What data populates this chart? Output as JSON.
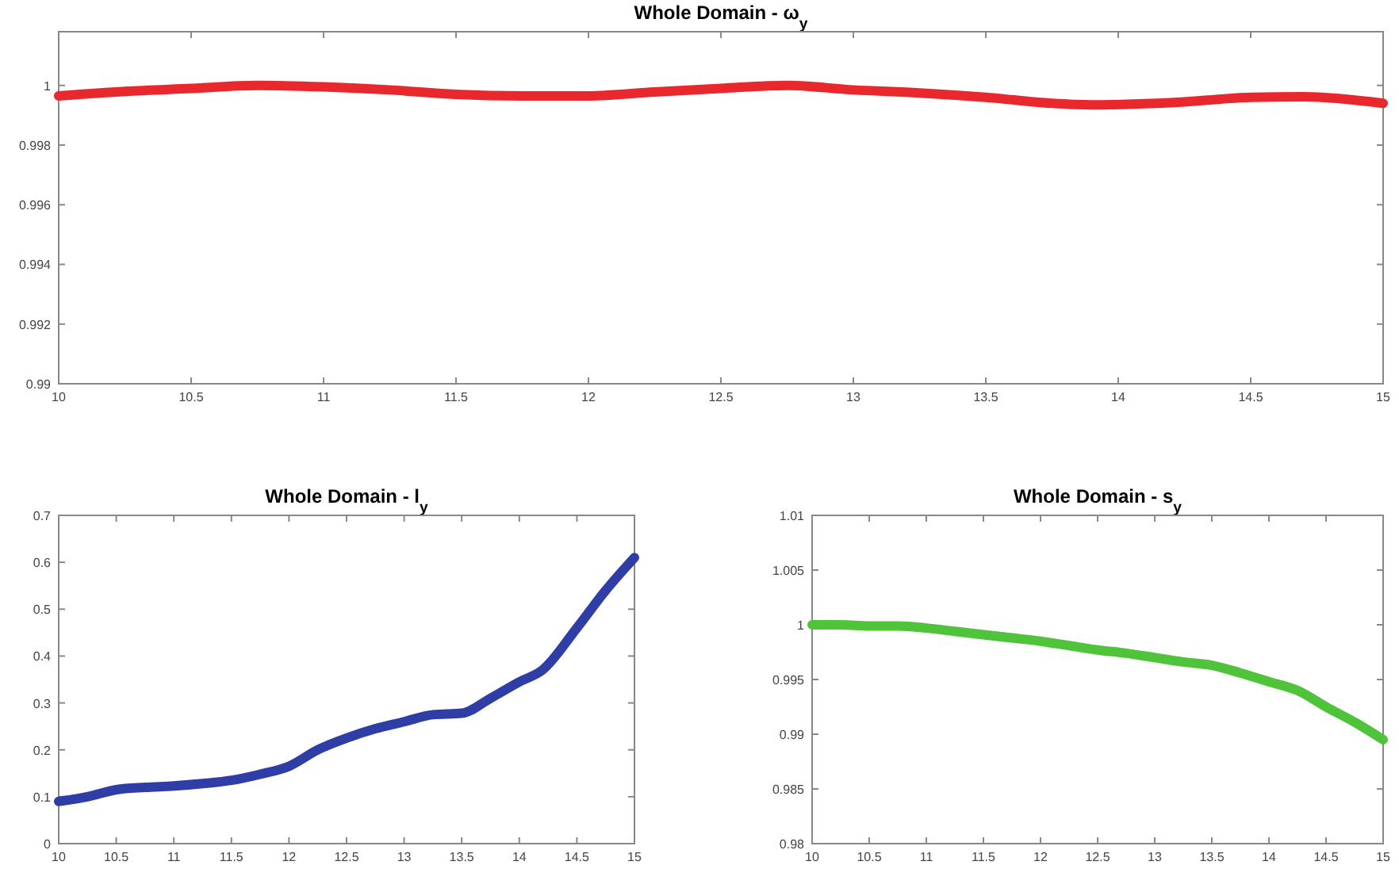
{
  "chart_data": [
    {
      "type": "line",
      "title": "Whole Domain - ω$_{y}$",
      "x": [
        10,
        10.25,
        10.5,
        10.75,
        11,
        11.25,
        11.5,
        11.75,
        12,
        12.25,
        12.5,
        12.75,
        13,
        13.25,
        13.5,
        13.75,
        13.9,
        14.25,
        14.5,
        14.7,
        15
      ],
      "series": [
        {
          "color": "#e8282c",
          "values": [
            0.99965,
            0.9998,
            0.9999,
            1.0,
            0.99995,
            0.99985,
            0.9997,
            0.99965,
            0.99965,
            0.99978,
            0.9999,
            1.0,
            0.99985,
            0.99975,
            0.9996,
            0.9994,
            0.99935,
            0.99945,
            0.9996,
            0.99962,
            0.9994
          ]
        }
      ],
      "xlim": [
        10,
        15
      ],
      "xticks": [
        10,
        10.5,
        11,
        11.5,
        12,
        12.5,
        13,
        13.5,
        14,
        14.5,
        15
      ],
      "ylim": [
        0.99,
        1.0018
      ],
      "yticks": [
        0.99,
        0.992,
        0.994,
        0.996,
        0.998,
        1
      ],
      "grid": false,
      "line_style": "solid"
    },
    {
      "type": "line",
      "title": "Whole Domain - l$_{y}$",
      "x": [
        10,
        10.25,
        10.5,
        10.75,
        11,
        11.25,
        11.5,
        11.75,
        12,
        12.25,
        12.5,
        12.75,
        13,
        13.25,
        13.5,
        13.75,
        14,
        14.2,
        14.5,
        14.75,
        15
      ],
      "series": [
        {
          "color": "#2e3ea6",
          "values": [
            0.09,
            0.1,
            0.115,
            0.12,
            0.123,
            0.128,
            0.135,
            0.148,
            0.165,
            0.2,
            0.225,
            0.245,
            0.26,
            0.275,
            0.278,
            0.31,
            0.345,
            0.37,
            0.46,
            0.54,
            0.61
          ]
        }
      ],
      "xlim": [
        10,
        15
      ],
      "xticks": [
        10,
        10.5,
        11,
        11.5,
        12,
        12.5,
        13,
        13.5,
        14,
        14.5,
        15
      ],
      "ylim": [
        0,
        0.7
      ],
      "yticks": [
        0,
        0.1,
        0.2,
        0.3,
        0.4,
        0.5,
        0.6,
        0.7
      ],
      "grid": false,
      "line_style": "solid"
    },
    {
      "type": "line",
      "title": "Whole Domain - s$_{y}$",
      "x": [
        10,
        10.25,
        10.5,
        10.75,
        11,
        11.25,
        11.5,
        11.75,
        12,
        12.25,
        12.5,
        12.75,
        13,
        13.25,
        13.5,
        13.75,
        14,
        14.25,
        14.5,
        14.75,
        15
      ],
      "series": [
        {
          "color": "#4fc33a",
          "values": [
            1.0,
            1.0,
            0.9999,
            0.9999,
            0.9997,
            0.9994,
            0.9991,
            0.9988,
            0.9985,
            0.9981,
            0.9977,
            0.9974,
            0.997,
            0.9966,
            0.9963,
            0.9956,
            0.9948,
            0.994,
            0.9925,
            0.9911,
            0.9895
          ]
        }
      ],
      "xlim": [
        10,
        15
      ],
      "xticks": [
        10,
        10.5,
        11,
        11.5,
        12,
        12.5,
        13,
        13.5,
        14,
        14.5,
        15
      ],
      "ylim": [
        0.98,
        1.01
      ],
      "yticks": [
        0.98,
        0.985,
        0.99,
        0.995,
        1,
        1.005,
        1.01
      ],
      "grid": false,
      "line_style": "solid"
    }
  ]
}
